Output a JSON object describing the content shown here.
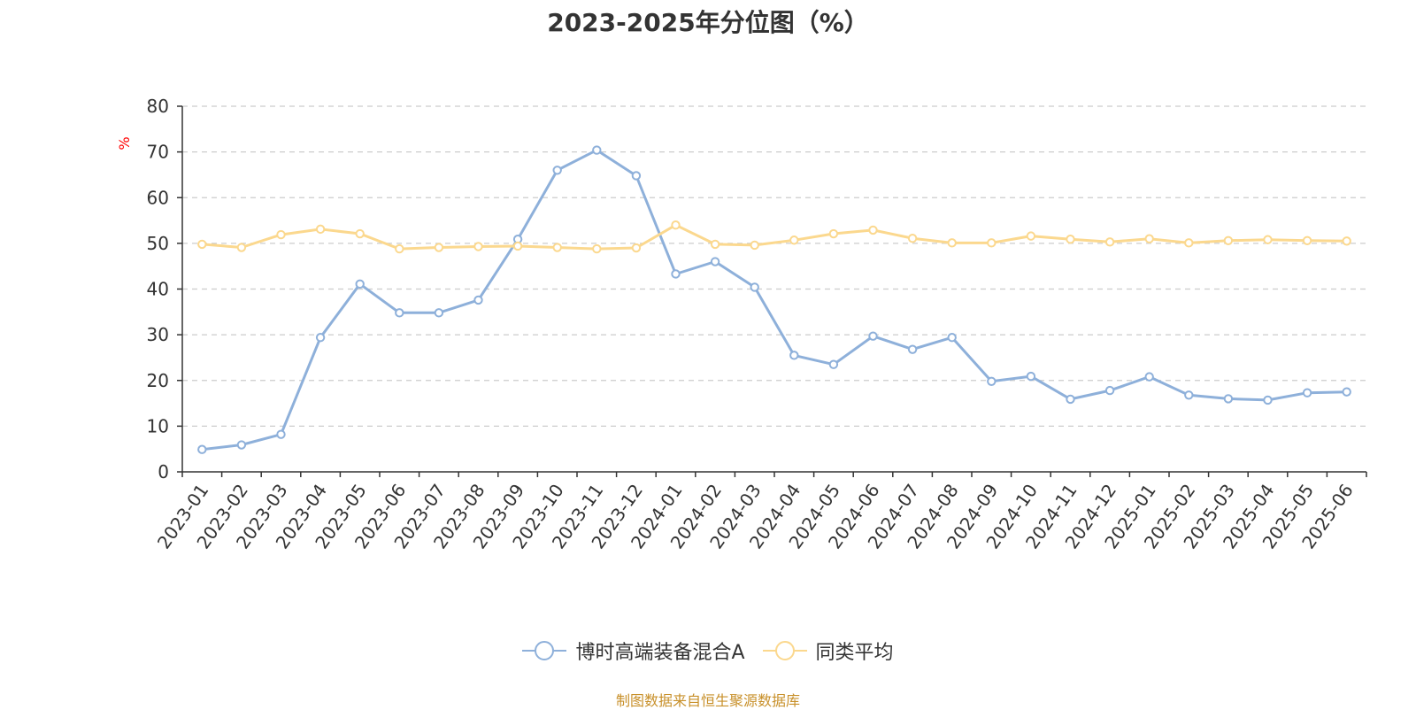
{
  "chart_data": {
    "type": "line",
    "title": "2023-2025年分位图（%）",
    "ylabel": "%",
    "ylim": [
      0,
      80
    ],
    "yticks": [
      "0",
      "10",
      "20",
      "30",
      "40",
      "50",
      "60",
      "70",
      "80"
    ],
    "grid": true,
    "legend_position": "bottom",
    "categories": [
      "2023-01",
      "2023-02",
      "2023-03",
      "2023-04",
      "2023-05",
      "2023-06",
      "2023-07",
      "2023-08",
      "2023-09",
      "2023-10",
      "2023-11",
      "2023-12",
      "2024-01",
      "2024-02",
      "2024-03",
      "2024-04",
      "2024-05",
      "2024-06",
      "2024-07",
      "2024-08",
      "2024-09",
      "2024-10",
      "2024-11",
      "2024-12",
      "2025-01",
      "2025-02",
      "2025-03",
      "2025-04",
      "2025-05",
      "2025-06"
    ],
    "series": [
      {
        "name": "博时高端装备混合A",
        "color": "#8eb0da",
        "values": [
          4.9,
          5.9,
          8.2,
          29.4,
          41.1,
          34.8,
          34.8,
          37.6,
          50.9,
          66.0,
          70.4,
          64.8,
          43.3,
          46.0,
          40.4,
          25.5,
          23.5,
          29.7,
          26.8,
          29.4,
          19.8,
          20.9,
          15.9,
          17.8,
          20.8,
          16.8,
          16.0,
          15.7,
          17.3,
          17.5
        ]
      },
      {
        "name": "同类平均",
        "color": "#fbd88e",
        "values": [
          49.8,
          49.1,
          51.9,
          53.1,
          52.1,
          48.8,
          49.1,
          49.3,
          49.4,
          49.1,
          48.8,
          49.0,
          54.0,
          49.8,
          49.6,
          50.7,
          52.1,
          52.9,
          51.1,
          50.1,
          50.1,
          51.6,
          50.9,
          50.3,
          51.0,
          50.1,
          50.6,
          50.8,
          50.6,
          50.5
        ]
      }
    ]
  },
  "source_text": "制图数据来自恒生聚源数据库",
  "colors": {
    "title": "#333333",
    "axis": "#333333",
    "grid": "#cccccc",
    "ylabel": "#ff0000",
    "source": "#c8902a"
  }
}
